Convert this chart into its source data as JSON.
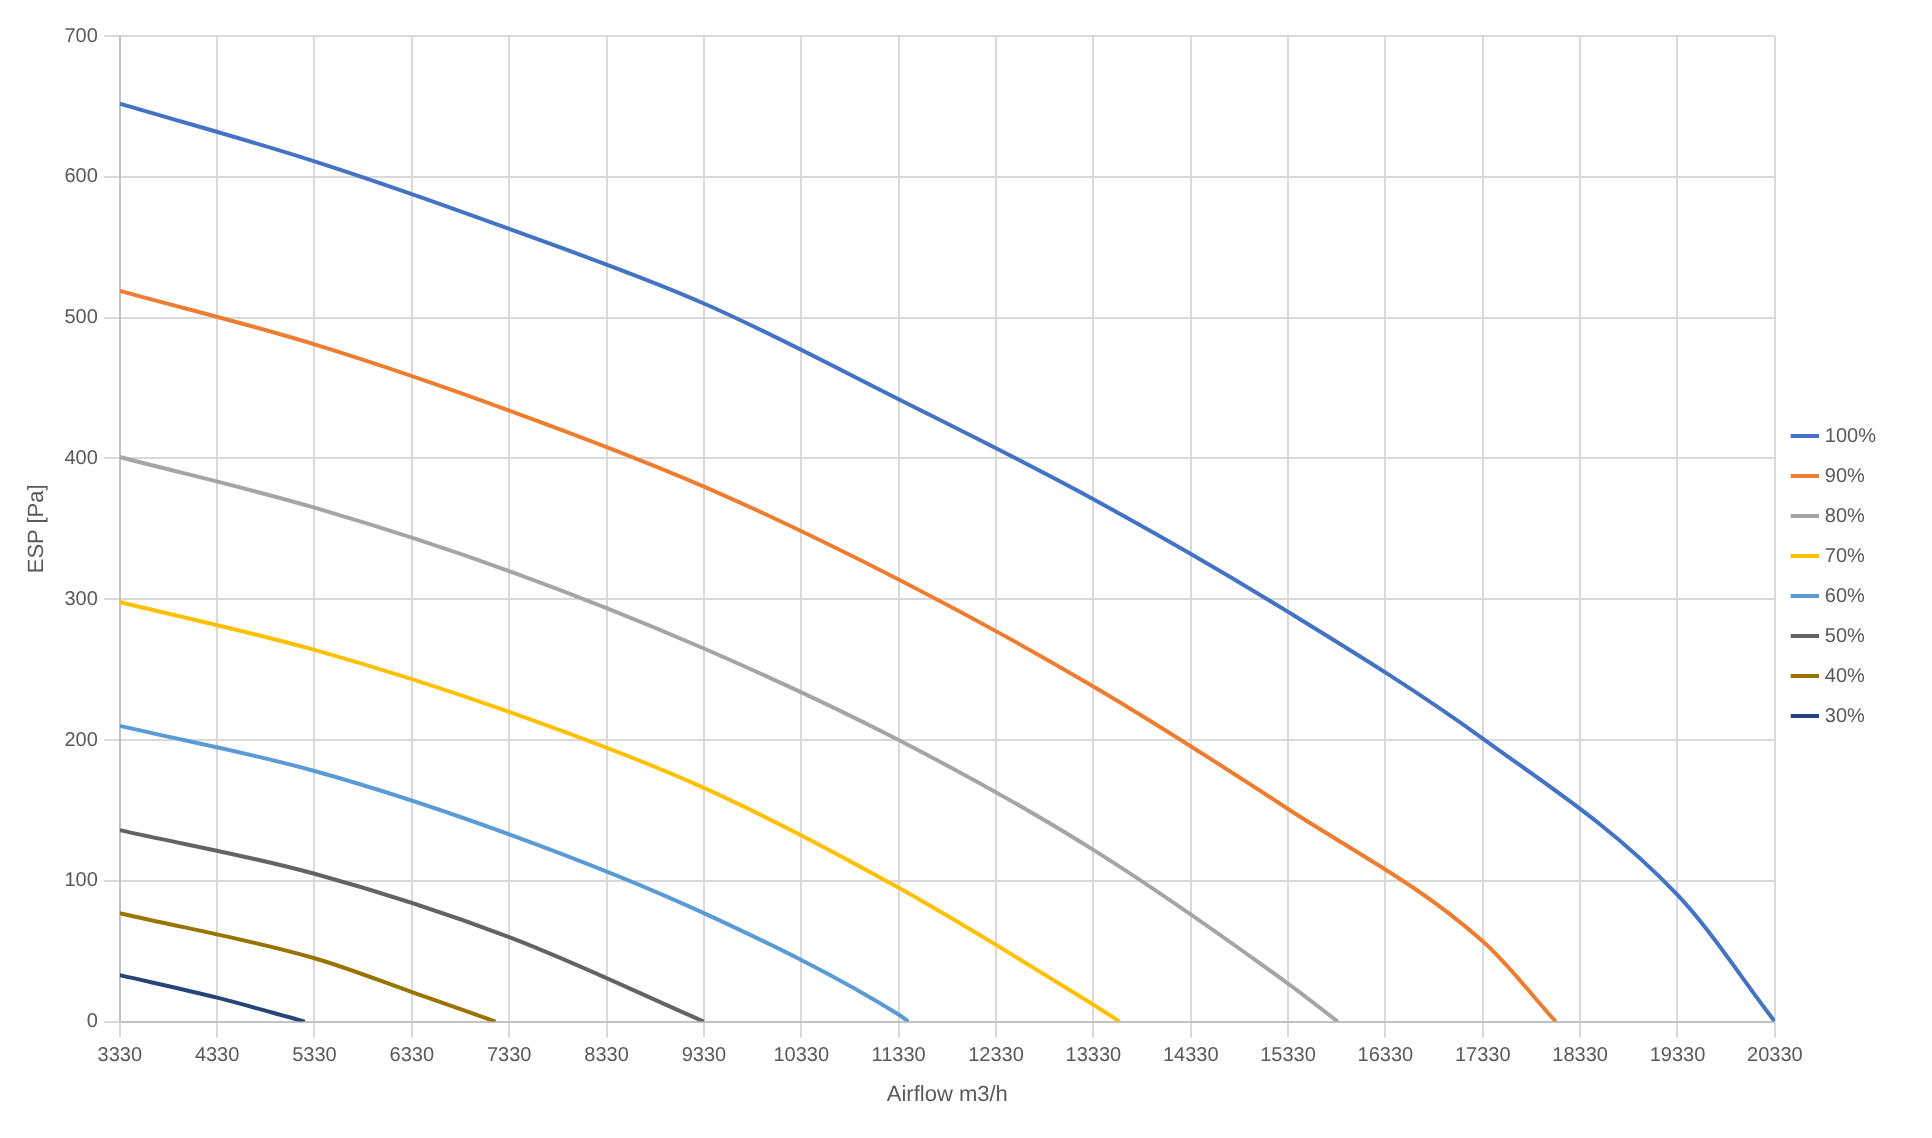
{
  "chart_data": {
    "type": "line",
    "xlabel": "Airflow m3/h",
    "ylabel": "ESP [Pa]",
    "xlim": [
      3330,
      20330
    ],
    "xticks": [
      3330,
      4330,
      5330,
      6330,
      7330,
      8330,
      9330,
      10330,
      11330,
      12330,
      13330,
      14330,
      15330,
      16330,
      17330,
      18330,
      19330,
      20330
    ],
    "ylim": [
      0,
      700
    ],
    "yticks": [
      0,
      100,
      200,
      300,
      400,
      500,
      600,
      700
    ],
    "grid": true,
    "legend": "right",
    "marker": "none",
    "line_style": "solid",
    "series": [
      {
        "name": "100%",
        "color": "#4472c4",
        "x": [
          3330,
          5330,
          7330,
          9330,
          11330,
          13330,
          15330,
          17330,
          19330,
          20330
        ],
        "values": [
          652,
          611,
          563,
          510,
          442,
          371,
          291,
          201,
          90,
          0
        ]
      },
      {
        "name": "90%",
        "color": "#ed7d31",
        "x": [
          3330,
          5330,
          7330,
          9330,
          11330,
          13330,
          15330,
          17330,
          18080
        ],
        "values": [
          519,
          481,
          434,
          380,
          314,
          238,
          151,
          57,
          0
        ]
      },
      {
        "name": "80%",
        "color": "#a5a5a5",
        "x": [
          3330,
          5330,
          7330,
          9330,
          11330,
          13330,
          15330,
          15840
        ],
        "values": [
          401,
          365,
          320,
          265,
          200,
          122,
          27,
          0
        ]
      },
      {
        "name": "70%",
        "color": "#ffc000",
        "x": [
          3330,
          5330,
          7330,
          9330,
          11330,
          13330,
          13600
        ],
        "values": [
          298,
          264,
          220,
          166,
          95,
          12,
          0
        ]
      },
      {
        "name": "60%",
        "color": "#5b9bd5",
        "x": [
          3330,
          5330,
          7330,
          9330,
          11330,
          11430
        ],
        "values": [
          210,
          178,
          133,
          77,
          5,
          0
        ]
      },
      {
        "name": "50%",
        "color": "#636363",
        "x": [
          3330,
          5330,
          7330,
          9330
        ],
        "values": [
          136,
          105,
          60,
          0
        ]
      },
      {
        "name": "40%",
        "color": "#997300",
        "x": [
          3330,
          5330,
          6330,
          7190
        ],
        "values": [
          77,
          45,
          21,
          0
        ]
      },
      {
        "name": "30%",
        "color": "#264478",
        "x": [
          3330,
          4330,
          5230
        ],
        "values": [
          33,
          17,
          0
        ]
      }
    ]
  }
}
